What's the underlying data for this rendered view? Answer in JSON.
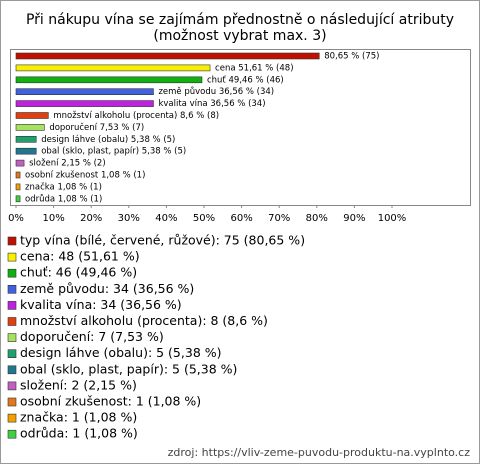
{
  "chart_data": {
    "type": "bar",
    "orientation": "horizontal",
    "title": "Při nákupu vína se zajímám přednostně o následující atributy",
    "subtitle": "(možnost vybrat max. 3)",
    "categories": [
      "typ vína (bílé, červené, růžové): 75 (80,65 %)",
      "cena: 48 (51,61 %)",
      "chuť: 46 (49,46 %)",
      "země původu: 34 (36,56 %)",
      "kvalita vína: 34 (36,56 %)",
      "množství alkoholu (procenta): 8 (8,6 %)",
      "doporučení: 7 (7,53 %)",
      "design láhve (obalu): 5 (5,38 %)",
      "obal (sklo, plast, papír): 5 (5,38 %)",
      "složení: 2 (2,15 %)",
      "osobní zkušenost: 1 (1,08 %)",
      "značka: 1 (1,08 %)",
      "odrůda: 1 (1,08 %)"
    ],
    "values": [
      80.65,
      51.61,
      49.46,
      36.56,
      36.56,
      8.6,
      7.53,
      5.38,
      5.38,
      2.15,
      1.08,
      1.08,
      1.08
    ],
    "value_labels": [
      "80,65 % (75)",
      "cena 51,61 % (48)",
      "chuť 49,46 % (46)",
      "země původu 36,56 % (34)",
      "kvalita vína 36,56 % (34)",
      "množství alkoholu (procenta) 8,6 % (8)",
      "doporučení 7,53 % (7)",
      "design láhve (obalu) 5,38 % (5)",
      "obal (sklo, plast, papír) 5,38 % (5)",
      "složení 2,15 % (2)",
      "osobní zkušenost 1,08 % (1)",
      "značka 1,08 % (1)",
      "odrůda 1,08 % (1)"
    ],
    "colors": [
      "#c01000",
      "#f8f000",
      "#10b010",
      "#4060e0",
      "#c020e0",
      "#e04010",
      "#a8e060",
      "#20a070",
      "#207890",
      "#c060c0",
      "#e07820",
      "#f0a000",
      "#40d040"
    ],
    "xlim": [
      0,
      100
    ],
    "xticks": [
      {
        "value": 0,
        "label": "0%"
      },
      {
        "value": 10,
        "label": "10%"
      },
      {
        "value": 20,
        "label": "20%"
      },
      {
        "value": 30,
        "label": "30%"
      },
      {
        "value": 40,
        "label": "40%"
      },
      {
        "value": 50,
        "label": "50%"
      },
      {
        "value": 60,
        "label": "60%"
      },
      {
        "value": 70,
        "label": "70%"
      },
      {
        "value": 80,
        "label": "80%"
      },
      {
        "value": 90,
        "label": "90%"
      },
      {
        "value": 100,
        "label": "100%"
      }
    ],
    "grid": false,
    "source": "zdroj: https://vliv-zeme-puvodu-produktu-na.vyplnto.cz"
  }
}
